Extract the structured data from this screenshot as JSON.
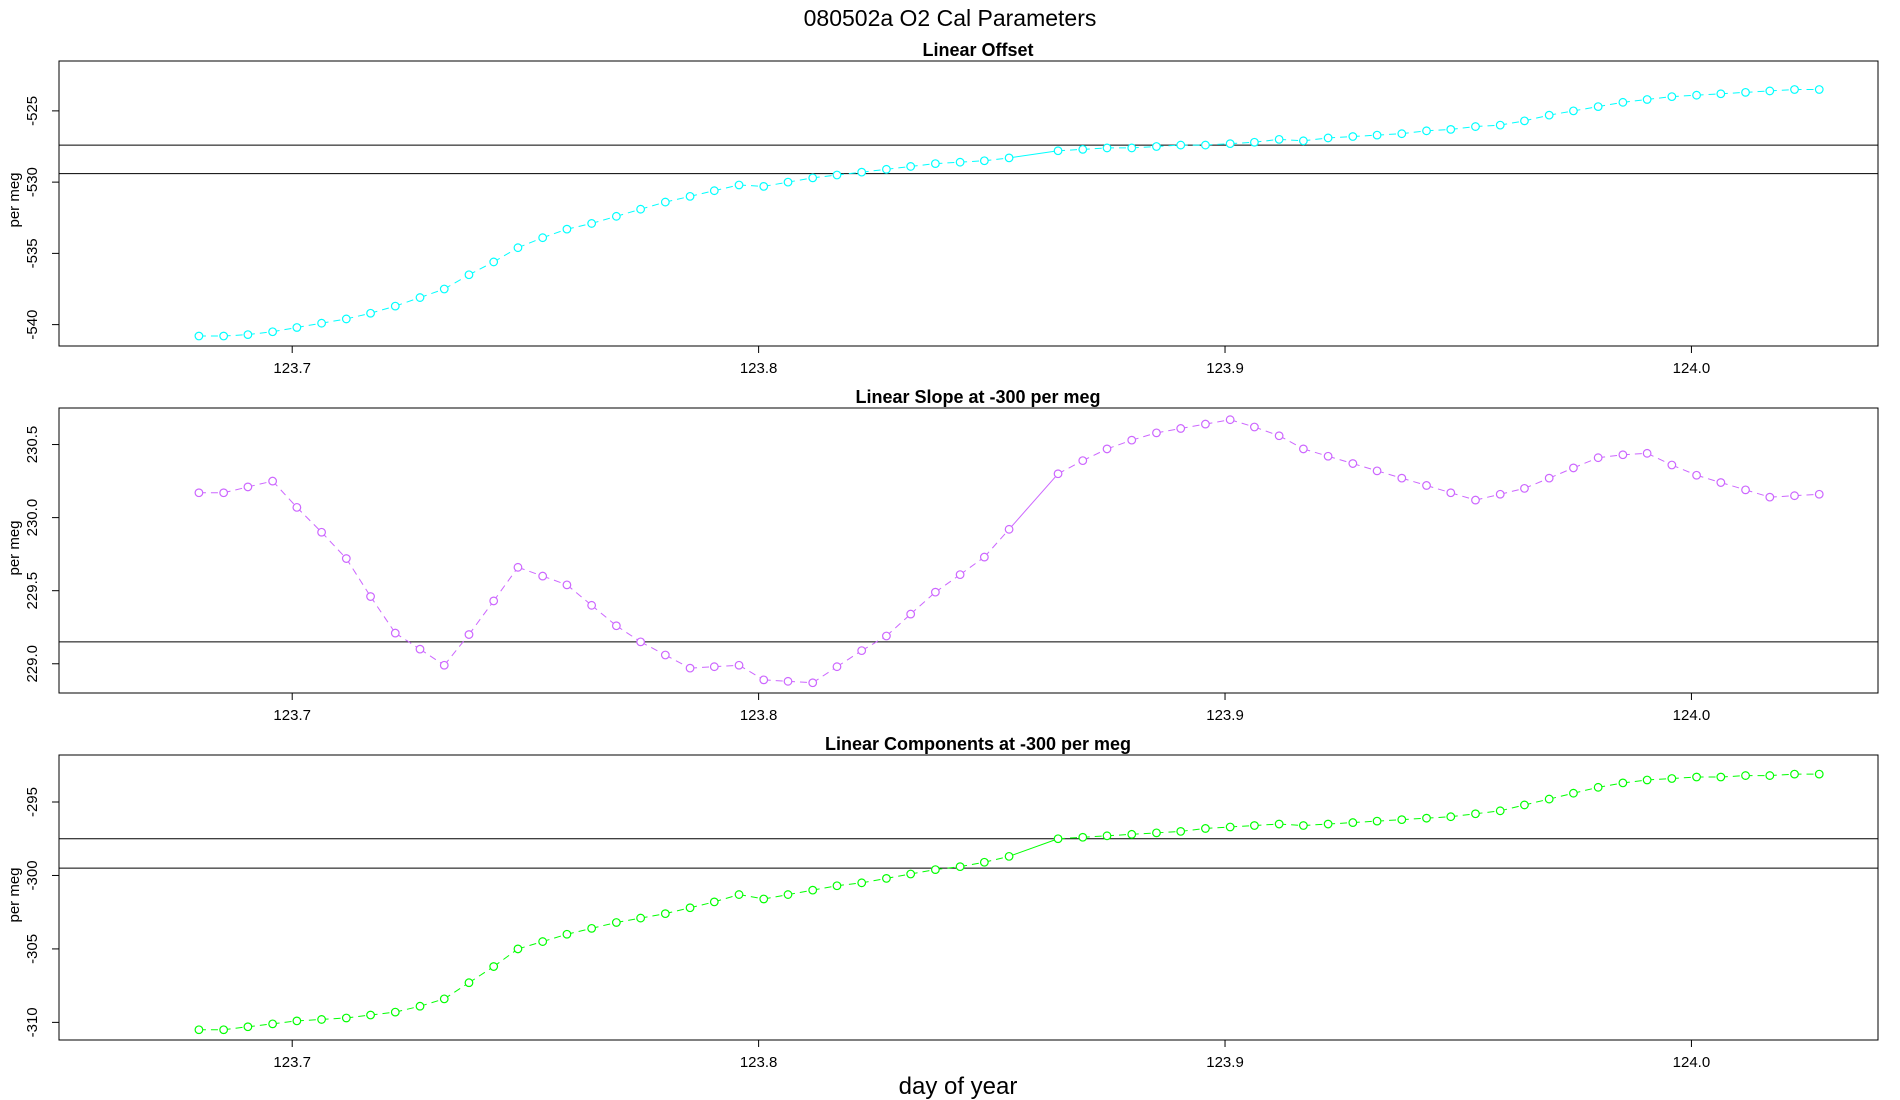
{
  "figure": {
    "title": "080502a   O2 Cal Parameters",
    "xlabel": "day of year"
  },
  "chart_data": [
    {
      "type": "line",
      "title": "Linear Offset",
      "xlabel": "day of year",
      "ylabel": "per meg",
      "color": "#00ffff",
      "xlim": [
        123.65,
        124.04
      ],
      "ylim": [
        -541.5,
        -521.5
      ],
      "xticks": [
        123.7,
        123.8,
        123.9,
        124.0
      ],
      "yticks": [
        -540,
        -535,
        -530,
        -525
      ],
      "reference_lines": [
        -527.4,
        -529.4
      ],
      "x": [
        123.68,
        123.6853,
        123.6905,
        123.6958,
        123.701,
        123.7063,
        123.7116,
        123.7168,
        123.7221,
        123.7274,
        123.7326,
        123.7379,
        123.7432,
        123.7484,
        123.7537,
        123.7589,
        123.7642,
        123.7695,
        123.7747,
        123.78,
        123.7853,
        123.7905,
        123.7958,
        123.8011,
        123.8063,
        123.8116,
        123.8168,
        123.8221,
        123.8274,
        123.8326,
        123.8379,
        123.8432,
        123.8484,
        123.8537,
        123.8642,
        123.8695,
        123.8747,
        123.88,
        123.8853,
        123.8905,
        123.8958,
        123.9011,
        123.9063,
        123.9116,
        123.9168,
        123.9221,
        123.9274,
        123.9326,
        123.9379,
        123.9432,
        123.9484,
        123.9537,
        123.959,
        123.9642,
        123.9695,
        123.9747,
        123.98,
        123.9853,
        123.9905,
        123.9958,
        124.0011,
        124.0063,
        124.0116,
        124.0168,
        124.0221,
        124.0274
      ],
      "y": [
        -540.8,
        -540.8,
        -540.7,
        -540.5,
        -540.2,
        -539.9,
        -539.6,
        -539.2,
        -538.7,
        -538.1,
        -537.5,
        -536.5,
        -535.6,
        -534.6,
        -533.9,
        -533.3,
        -532.9,
        -532.4,
        -531.9,
        -531.4,
        -531.0,
        -530.6,
        -530.2,
        -530.3,
        -530.0,
        -529.7,
        -529.5,
        -529.3,
        -529.1,
        -528.9,
        -528.7,
        -528.6,
        -528.5,
        -528.3,
        -527.8,
        -527.7,
        -527.6,
        -527.6,
        -527.5,
        -527.4,
        -527.4,
        -527.3,
        -527.2,
        -527.0,
        -527.1,
        -526.9,
        -526.8,
        -526.7,
        -526.6,
        -526.4,
        -526.3,
        -526.1,
        -526.0,
        -525.7,
        -525.3,
        -525.0,
        -524.7,
        -524.4,
        -524.2,
        -524.0,
        -523.9,
        -523.8,
        -523.7,
        -523.6,
        -523.5,
        -523.5
      ]
    },
    {
      "type": "line",
      "title": "Linear Slope at -300 per meg",
      "xlabel": "day of year",
      "ylabel": "per meg",
      "color": "#cc66ff",
      "xlim": [
        123.65,
        124.04
      ],
      "ylim": [
        228.8,
        230.75
      ],
      "xticks": [
        123.7,
        123.8,
        123.9,
        124.0
      ],
      "yticks": [
        229.0,
        229.5,
        230.0,
        230.5
      ],
      "reference_lines": [
        229.15
      ],
      "x": [
        123.68,
        123.6853,
        123.6905,
        123.6958,
        123.701,
        123.7063,
        123.7116,
        123.7168,
        123.7221,
        123.7274,
        123.7326,
        123.7379,
        123.7432,
        123.7484,
        123.7537,
        123.7589,
        123.7642,
        123.7695,
        123.7747,
        123.78,
        123.7853,
        123.7905,
        123.7958,
        123.8011,
        123.8063,
        123.8116,
        123.8168,
        123.8221,
        123.8274,
        123.8326,
        123.8379,
        123.8432,
        123.8484,
        123.8537,
        123.8642,
        123.8695,
        123.8747,
        123.88,
        123.8853,
        123.8905,
        123.8958,
        123.9011,
        123.9063,
        123.9116,
        123.9168,
        123.9221,
        123.9274,
        123.9326,
        123.9379,
        123.9432,
        123.9484,
        123.9537,
        123.959,
        123.9642,
        123.9695,
        123.9747,
        123.98,
        123.9853,
        123.9905,
        123.9958,
        124.0011,
        124.0063,
        124.0116,
        124.0168,
        124.0221,
        124.0274
      ],
      "y": [
        230.17,
        230.17,
        230.21,
        230.25,
        230.07,
        229.9,
        229.72,
        229.46,
        229.21,
        229.1,
        228.99,
        229.2,
        229.43,
        229.66,
        229.6,
        229.54,
        229.4,
        229.26,
        229.15,
        229.06,
        228.97,
        228.98,
        228.99,
        228.89,
        228.88,
        228.87,
        228.98,
        229.09,
        229.19,
        229.34,
        229.49,
        229.61,
        229.73,
        229.92,
        230.3,
        230.39,
        230.47,
        230.53,
        230.58,
        230.61,
        230.64,
        230.67,
        230.62,
        230.56,
        230.47,
        230.42,
        230.37,
        230.32,
        230.27,
        230.22,
        230.17,
        230.12,
        230.16,
        230.2,
        230.27,
        230.34,
        230.41,
        230.43,
        230.44,
        230.36,
        230.29,
        230.24,
        230.19,
        230.14,
        230.15,
        230.16
      ]
    },
    {
      "type": "line",
      "title": "Linear Components at -300 per meg",
      "xlabel": "day of year",
      "ylabel": "per meg",
      "color": "#00ff00",
      "xlim": [
        123.65,
        124.04
      ],
      "ylim": [
        -311.2,
        -291.8
      ],
      "xticks": [
        123.7,
        123.8,
        123.9,
        124.0
      ],
      "yticks": [
        -310,
        -305,
        -300,
        -295
      ],
      "reference_lines": [
        -297.5,
        -299.5
      ],
      "x": [
        123.68,
        123.6853,
        123.6905,
        123.6958,
        123.701,
        123.7063,
        123.7116,
        123.7168,
        123.7221,
        123.7274,
        123.7326,
        123.7379,
        123.7432,
        123.7484,
        123.7537,
        123.7589,
        123.7642,
        123.7695,
        123.7747,
        123.78,
        123.7853,
        123.7905,
        123.7958,
        123.8011,
        123.8063,
        123.8116,
        123.8168,
        123.8221,
        123.8274,
        123.8326,
        123.8379,
        123.8432,
        123.8484,
        123.8537,
        123.8642,
        123.8695,
        123.8747,
        123.88,
        123.8853,
        123.8905,
        123.8958,
        123.9011,
        123.9063,
        123.9116,
        123.9168,
        123.9221,
        123.9274,
        123.9326,
        123.9379,
        123.9432,
        123.9484,
        123.9537,
        123.959,
        123.9642,
        123.9695,
        123.9747,
        123.98,
        123.9853,
        123.9905,
        123.9958,
        124.0011,
        124.0063,
        124.0116,
        124.0168,
        124.0221,
        124.0274
      ],
      "y": [
        -310.5,
        -310.5,
        -310.3,
        -310.1,
        -309.9,
        -309.8,
        -309.7,
        -309.5,
        -309.3,
        -308.9,
        -308.4,
        -307.3,
        -306.2,
        -305.0,
        -304.5,
        -304.0,
        -303.6,
        -303.2,
        -302.9,
        -302.6,
        -302.2,
        -301.8,
        -301.3,
        -301.6,
        -301.3,
        -301.0,
        -300.7,
        -300.5,
        -300.2,
        -299.9,
        -299.6,
        -299.4,
        -299.1,
        -298.7,
        -297.5,
        -297.4,
        -297.3,
        -297.2,
        -297.1,
        -297.0,
        -296.8,
        -296.7,
        -296.6,
        -296.5,
        -296.6,
        -296.5,
        -296.4,
        -296.3,
        -296.2,
        -296.1,
        -296.0,
        -295.8,
        -295.6,
        -295.2,
        -294.8,
        -294.4,
        -294.0,
        -293.7,
        -293.5,
        -293.4,
        -293.3,
        -293.3,
        -293.2,
        -293.2,
        -293.1,
        -293.1
      ]
    }
  ]
}
